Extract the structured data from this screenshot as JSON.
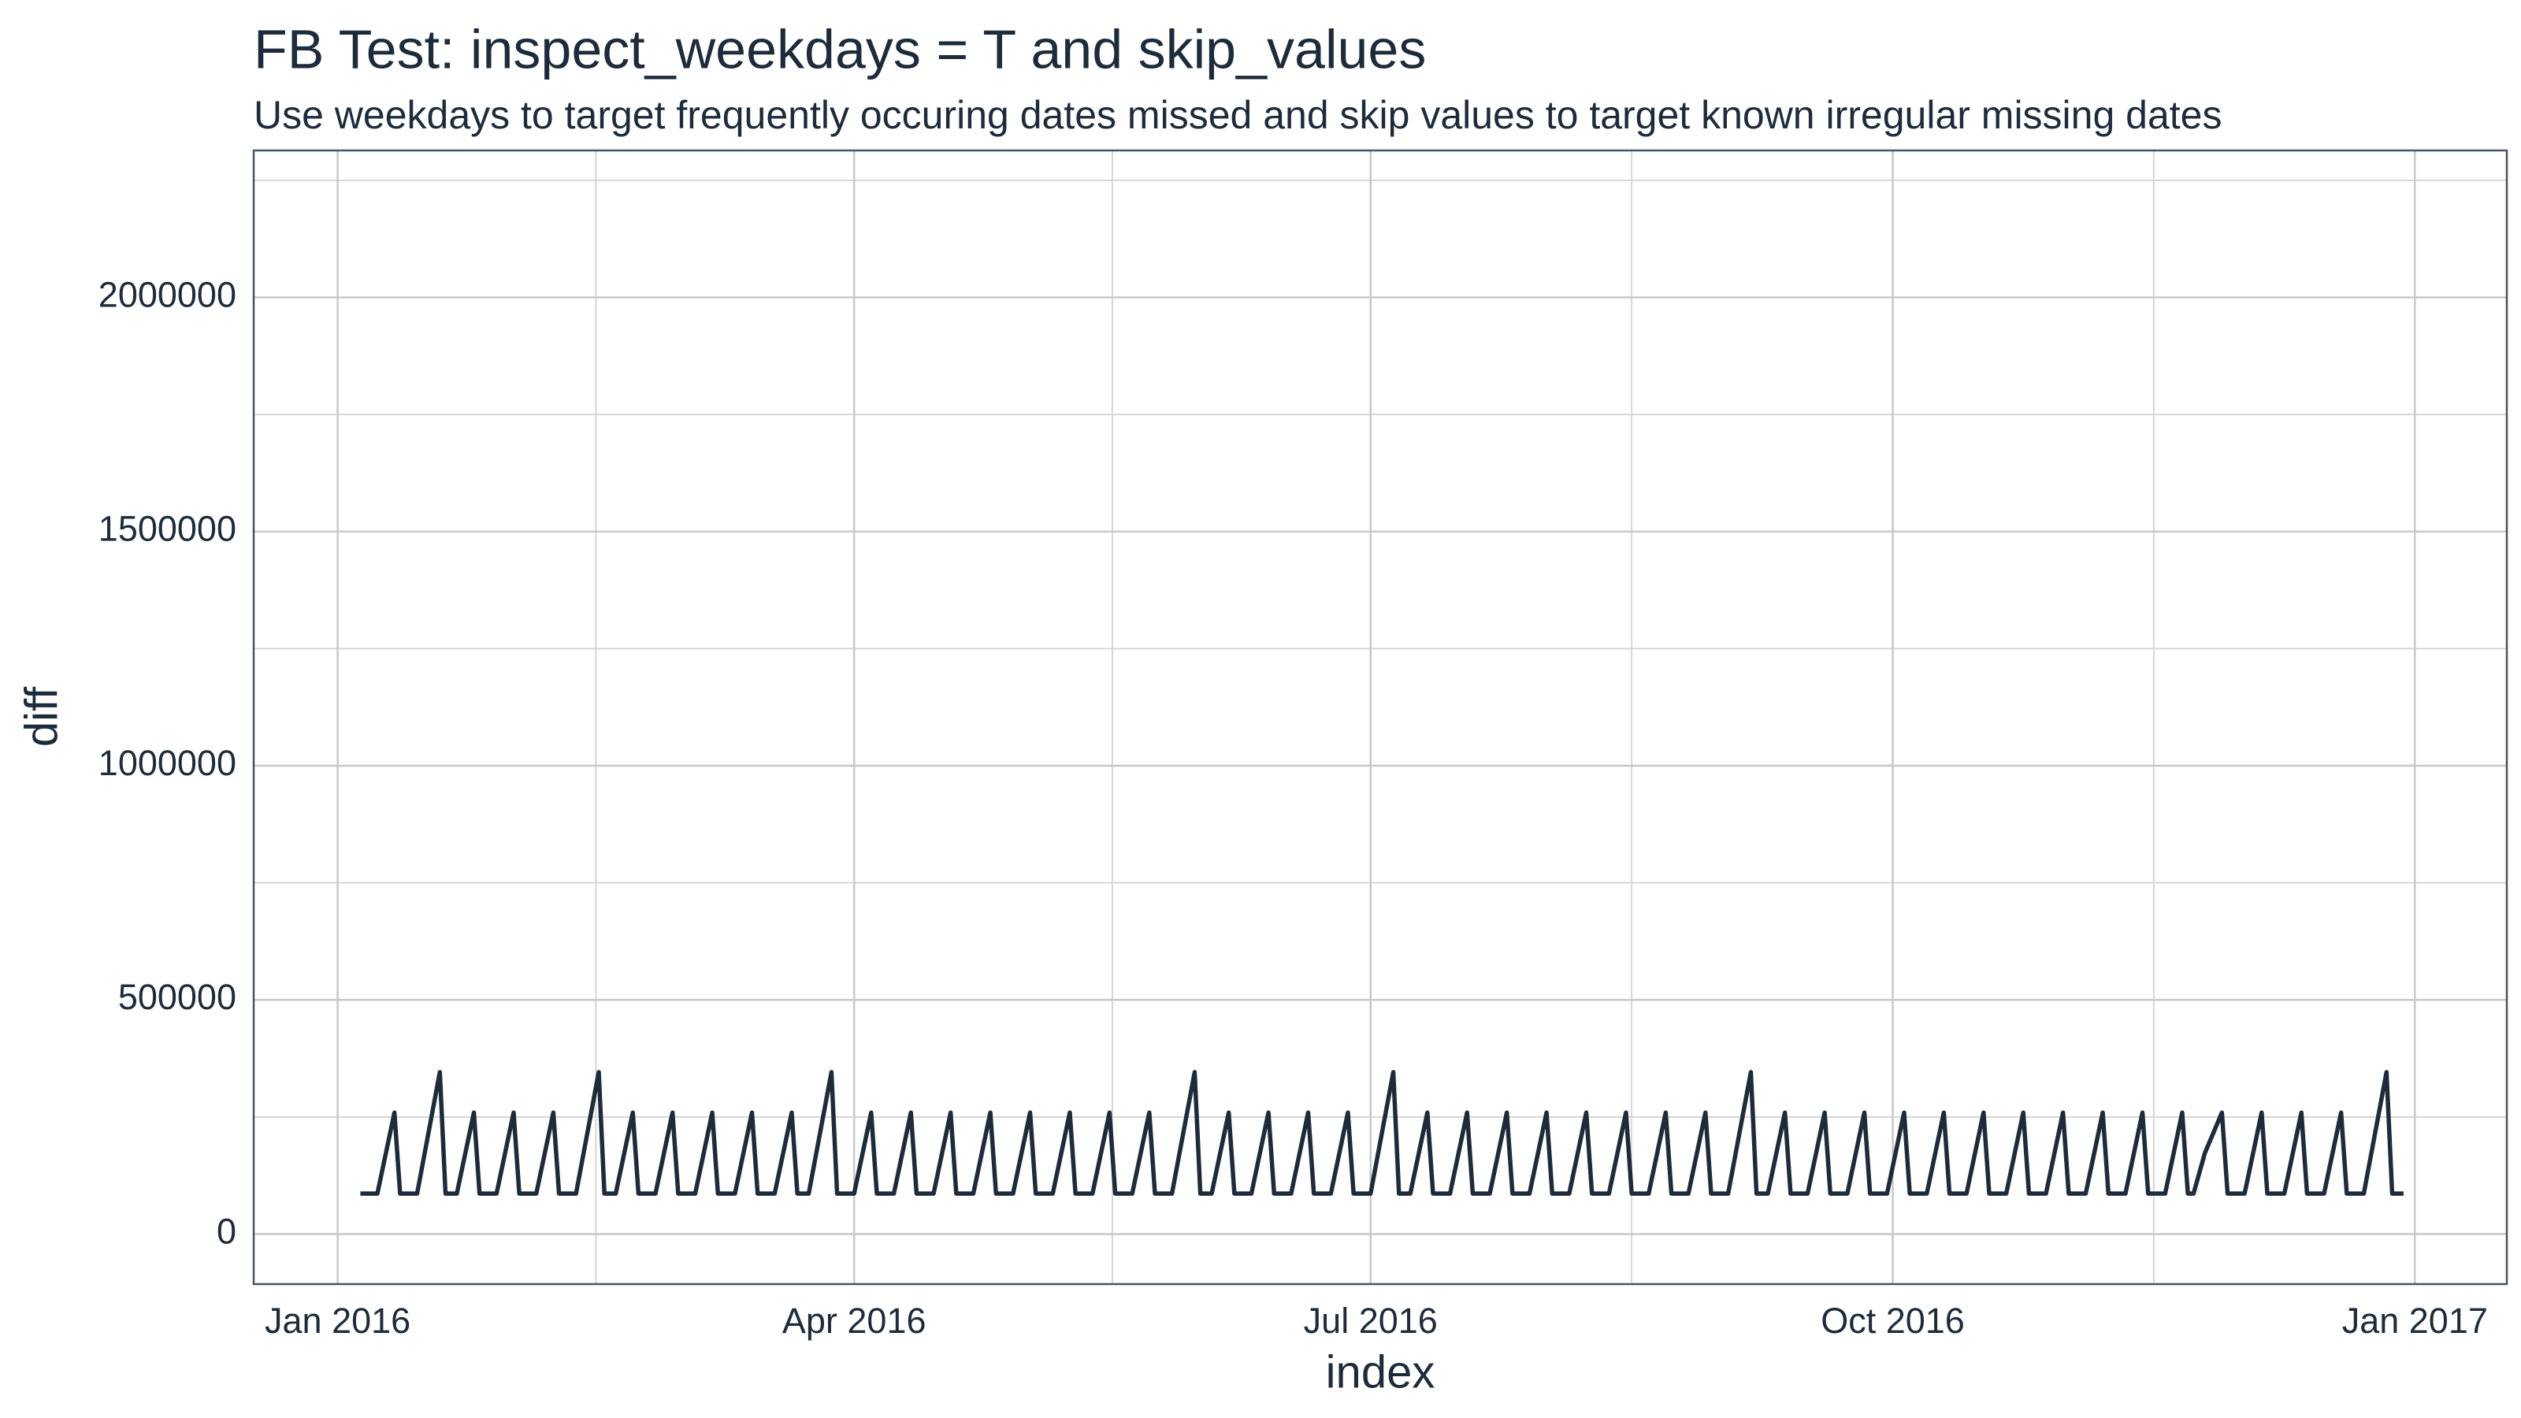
{
  "chart_data": {
    "type": "line",
    "title": "FB Test: inspect_weekdays = T and skip_values",
    "subtitle": "Use weekdays to target frequently occuring dates missed and skip values to target known irregular missing dates",
    "xlabel": "index",
    "ylabel": "diff",
    "x": [
      4,
      5,
      6,
      7,
      10,
      11,
      12,
      13,
      14,
      18,
      19,
      20,
      21,
      24,
      25,
      26,
      27,
      28,
      31,
      32,
      33,
      34,
      35,
      38,
      39,
      40,
      41,
      42,
      46,
      47,
      48,
      49,
      52,
      53,
      54,
      55,
      56,
      59,
      60,
      61,
      62,
      63,
      66,
      67,
      68,
      69,
      70,
      73,
      74,
      75,
      76,
      77,
      80,
      81,
      82,
      83,
      87,
      88,
      89,
      90,
      91,
      94,
      95,
      96,
      97,
      98,
      101,
      102,
      103,
      104,
      105,
      108,
      109,
      110,
      111,
      112,
      115,
      116,
      117,
      118,
      119,
      122,
      123,
      124,
      125,
      126,
      129,
      130,
      131,
      132,
      133,
      136,
      137,
      138,
      139,
      140,
      143,
      144,
      145,
      146,
      147,
      151,
      152,
      153,
      154,
      157,
      158,
      159,
      160,
      161,
      164,
      165,
      166,
      167,
      168,
      171,
      172,
      173,
      174,
      175,
      178,
      179,
      180,
      181,
      182,
      186,
      187,
      188,
      189,
      192,
      193,
      194,
      195,
      196,
      199,
      200,
      201,
      202,
      203,
      206,
      207,
      208,
      209,
      210,
      213,
      214,
      215,
      216,
      217,
      220,
      221,
      222,
      223,
      224,
      227,
      228,
      229,
      230,
      231,
      234,
      235,
      236,
      237,
      238,
      241,
      242,
      243,
      244,
      245,
      249,
      250,
      251,
      252,
      255,
      256,
      257,
      258,
      259,
      262,
      263,
      264,
      265,
      266,
      269,
      270,
      271,
      272,
      273,
      276,
      277,
      278,
      279,
      280,
      283,
      284,
      285,
      286,
      287,
      290,
      291,
      292,
      293,
      294,
      297,
      298,
      299,
      300,
      301,
      304,
      305,
      306,
      307,
      308,
      311,
      312,
      313,
      314,
      315,
      318,
      319,
      320,
      321,
      322,
      325,
      326,
      327,
      329,
      332,
      333,
      334,
      335,
      336,
      339,
      340,
      341,
      342,
      343,
      346,
      347,
      348,
      349,
      350,
      353,
      354,
      355,
      356,
      357,
      361,
      362,
      363,
      364
    ],
    "series": [
      {
        "name": "diff",
        "color": "#1e2b3a",
        "values": [
          86400,
          86400,
          86400,
          86400,
          259200,
          86400,
          86400,
          86400,
          86400,
          345600,
          86400,
          86400,
          86400,
          259200,
          86400,
          86400,
          86400,
          86400,
          259200,
          86400,
          86400,
          86400,
          86400,
          259200,
          86400,
          86400,
          86400,
          86400,
          345600,
          86400,
          86400,
          86400,
          259200,
          86400,
          86400,
          86400,
          86400,
          259200,
          86400,
          86400,
          86400,
          86400,
          259200,
          86400,
          86400,
          86400,
          86400,
          259200,
          86400,
          86400,
          86400,
          86400,
          259200,
          86400,
          86400,
          86400,
          345600,
          86400,
          86400,
          86400,
          86400,
          259200,
          86400,
          86400,
          86400,
          86400,
          259200,
          86400,
          86400,
          86400,
          86400,
          259200,
          86400,
          86400,
          86400,
          86400,
          259200,
          86400,
          86400,
          86400,
          86400,
          259200,
          86400,
          86400,
          86400,
          86400,
          259200,
          86400,
          86400,
          86400,
          86400,
          259200,
          86400,
          86400,
          86400,
          86400,
          259200,
          86400,
          86400,
          86400,
          86400,
          345600,
          86400,
          86400,
          86400,
          259200,
          86400,
          86400,
          86400,
          86400,
          259200,
          86400,
          86400,
          86400,
          86400,
          259200,
          86400,
          86400,
          86400,
          86400,
          259200,
          86400,
          86400,
          86400,
          86400,
          345600,
          86400,
          86400,
          86400,
          259200,
          86400,
          86400,
          86400,
          86400,
          259200,
          86400,
          86400,
          86400,
          86400,
          259200,
          86400,
          86400,
          86400,
          86400,
          259200,
          86400,
          86400,
          86400,
          86400,
          259200,
          86400,
          86400,
          86400,
          86400,
          259200,
          86400,
          86400,
          86400,
          86400,
          259200,
          86400,
          86400,
          86400,
          86400,
          259200,
          86400,
          86400,
          86400,
          86400,
          345600,
          86400,
          86400,
          86400,
          259200,
          86400,
          86400,
          86400,
          86400,
          259200,
          86400,
          86400,
          86400,
          86400,
          259200,
          86400,
          86400,
          86400,
          86400,
          259200,
          86400,
          86400,
          86400,
          86400,
          259200,
          86400,
          86400,
          86400,
          86400,
          259200,
          86400,
          86400,
          86400,
          86400,
          259200,
          86400,
          86400,
          86400,
          86400,
          259200,
          86400,
          86400,
          86400,
          86400,
          259200,
          86400,
          86400,
          86400,
          86400,
          259200,
          86400,
          86400,
          86400,
          86400,
          259200,
          86400,
          86400,
          172800,
          259200,
          86400,
          86400,
          86400,
          86400,
          259200,
          86400,
          86400,
          86400,
          86400,
          259200,
          86400,
          86400,
          86400,
          86400,
          259200,
          86400,
          86400,
          86400,
          86400,
          345600,
          86400,
          86400,
          86400
        ]
      }
    ],
    "xlim": [
      -14.8,
      382.2
    ],
    "xticks": [
      {
        "value": 0,
        "label": "Jan 2016"
      },
      {
        "value": 91,
        "label": "Apr 2016"
      },
      {
        "value": 182,
        "label": "Jul 2016"
      },
      {
        "value": 274,
        "label": "Oct 2016"
      },
      {
        "value": 366,
        "label": "Jan 2017"
      }
    ],
    "x_minor_ticks": [
      45.5,
      136.5,
      228,
      320
    ],
    "ylim": [
      -106900,
      2313800
    ],
    "yticks": [
      0,
      500000,
      1000000,
      1500000,
      2000000
    ],
    "y_minor_ticks": [
      250000,
      750000,
      1250000,
      1750000,
      2250000
    ],
    "grid": true
  }
}
